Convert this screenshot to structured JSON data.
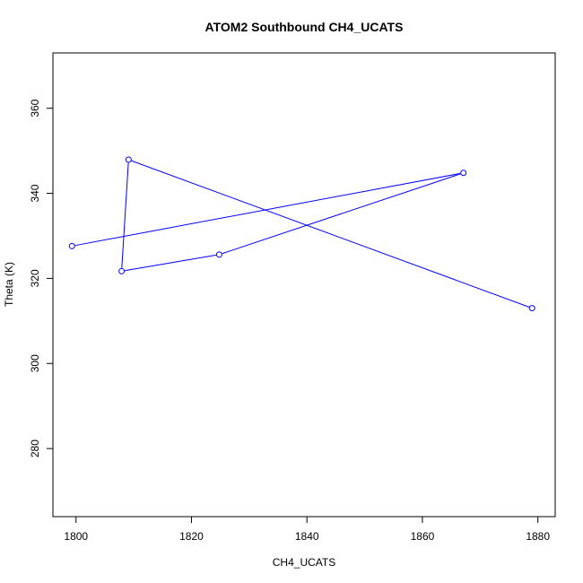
{
  "chart_data": {
    "type": "line",
    "title": "ATOM2 Southbound CH4_UCATS",
    "xlabel": "CH4_UCATS",
    "ylabel": "Theta (K)",
    "xlim": [
      1796,
      1883
    ],
    "ylim": [
      264,
      373
    ],
    "x_ticks": [
      1800,
      1820,
      1840,
      1860,
      1880
    ],
    "y_ticks": [
      280,
      300,
      320,
      340,
      360
    ],
    "grid": false,
    "series": [
      {
        "color": "#0000ff",
        "markers": "open-circle",
        "points": [
          {
            "x": 1799.3,
            "y": 327.6
          },
          {
            "x": 1867.1,
            "y": 344.8
          },
          {
            "x": 1824.8,
            "y": 325.6
          },
          {
            "x": 1807.9,
            "y": 321.7
          },
          {
            "x": 1809.1,
            "y": 347.9
          },
          {
            "x": 1879.0,
            "y": 313.0
          }
        ]
      }
    ]
  }
}
